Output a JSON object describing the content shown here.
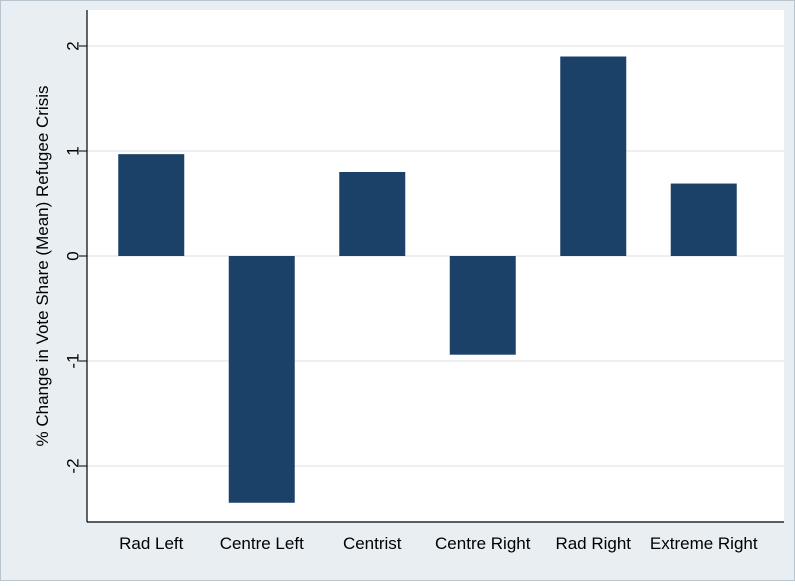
{
  "chart_data": {
    "type": "bar",
    "title": "",
    "xlabel": "",
    "ylabel": "% Change in Vote Share (Mean) Refugee Crisis",
    "categories": [
      "Rad Left",
      "Centre Left",
      "Centrist",
      "Centre Right",
      "Rad Right",
      "Extreme Right"
    ],
    "values": [
      0.97,
      -2.35,
      0.8,
      -0.94,
      1.9,
      0.69
    ],
    "yticks": [
      2,
      1,
      0,
      -1,
      -2
    ],
    "ytick_labels": [
      "2",
      "1",
      "0",
      "-1",
      "-2"
    ],
    "ylim": [
      -2.5,
      2.1
    ],
    "grid": true,
    "legend": "none"
  },
  "colors": {
    "bar": "#1b4168",
    "outer_background": "#e8eef2",
    "plot_background": "#ffffff",
    "gridline": "#e6ecef",
    "frame_border": "#b9c5ce"
  }
}
